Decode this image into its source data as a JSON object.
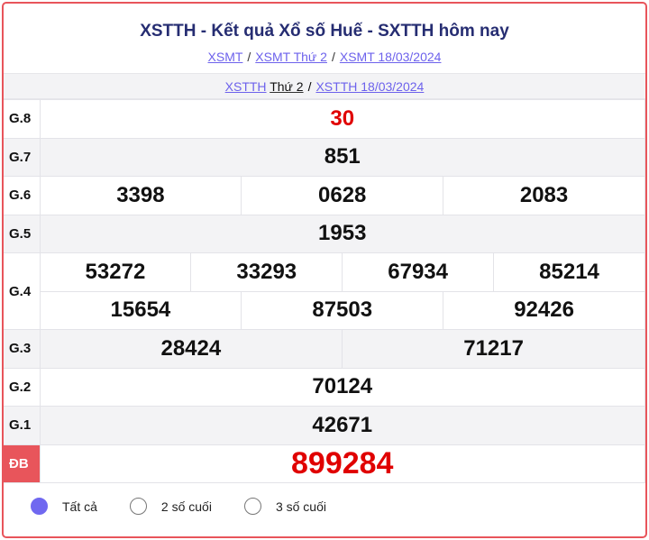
{
  "header": {
    "title": "XSTTH - Kết quả Xổ số Huế - SXTTH hôm nay",
    "breadcrumbs": [
      "XSMT",
      "XSMT Thứ 2",
      "XSMT 18/03/2024"
    ],
    "sub_link1": "XSTTH",
    "sub_link1_rest": "Thứ 2",
    "sub_link2": "XSTTH 18/03/2024",
    "separator": "/"
  },
  "results": {
    "g8": {
      "label": "G.8",
      "values": [
        "30"
      ]
    },
    "g7": {
      "label": "G.7",
      "values": [
        "851"
      ]
    },
    "g6": {
      "label": "G.6",
      "values": [
        "3398",
        "0628",
        "2083"
      ]
    },
    "g5": {
      "label": "G.5",
      "values": [
        "1953"
      ]
    },
    "g4": {
      "label": "G.4",
      "values": [
        "53272",
        "33293",
        "67934",
        "85214",
        "15654",
        "87503",
        "92426"
      ]
    },
    "g3": {
      "label": "G.3",
      "values": [
        "28424",
        "71217"
      ]
    },
    "g2": {
      "label": "G.2",
      "values": [
        "70124"
      ]
    },
    "g1": {
      "label": "G.1",
      "values": [
        "42671"
      ]
    },
    "db": {
      "label": "ĐB",
      "values": [
        "899284"
      ]
    }
  },
  "filter": {
    "options": [
      "Tất cả",
      "2 số cuối",
      "3 số cuối"
    ],
    "selected": "Tất cả"
  },
  "colors": {
    "accent": "#e8555b",
    "link": "#6d62ec",
    "title": "#262d72",
    "prize_red": "#e00000"
  }
}
